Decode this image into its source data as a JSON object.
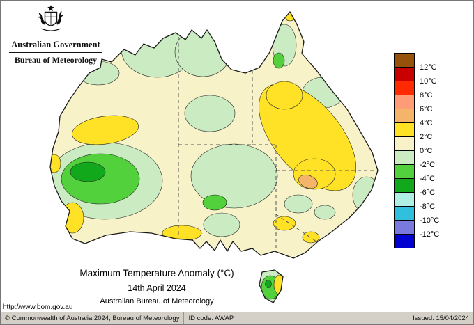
{
  "header": {
    "government": "Australian Government",
    "agency": "Bureau of Meteorology",
    "crest_icon": "australian-coat-of-arms"
  },
  "map": {
    "title": "Maximum Temperature Anomaly (°C)",
    "date": "14th April 2024",
    "subtitle": "Australian Bureau of Meteorology",
    "colors": {
      "base": "#F7F2C8",
      "pale_green": "#CBEBC3",
      "green": "#52D13C",
      "dark_green": "#12A81B",
      "yellow": "#FFE226",
      "orange": "#F4B469",
      "coastline": "#1a1a1a",
      "border_dash": "#555555"
    }
  },
  "legend": {
    "unit": "°C",
    "labels": [
      "12°C",
      "10°C",
      "8°C",
      "6°C",
      "4°C",
      "2°C",
      "0°C",
      "-2°C",
      "-4°C",
      "-6°C",
      "-8°C",
      "-10°C",
      "-12°C"
    ],
    "swatches": [
      "#96520A",
      "#C80000",
      "#FF2A00",
      "#FF9C78",
      "#F4B469",
      "#FFE226",
      "#F7F2C8",
      "#CBEBC3",
      "#52D13C",
      "#12A81B",
      "#AFEFE4",
      "#30C0DE",
      "#7A7ADE",
      "#0000D0"
    ]
  },
  "footer": {
    "url": "http://www.bom.gov.au",
    "copyright": "© Commonwealth of Australia 2024, Bureau of Meteorology",
    "id_code": "ID code: AWAP",
    "issued": "Issued: 15/04/2024"
  }
}
